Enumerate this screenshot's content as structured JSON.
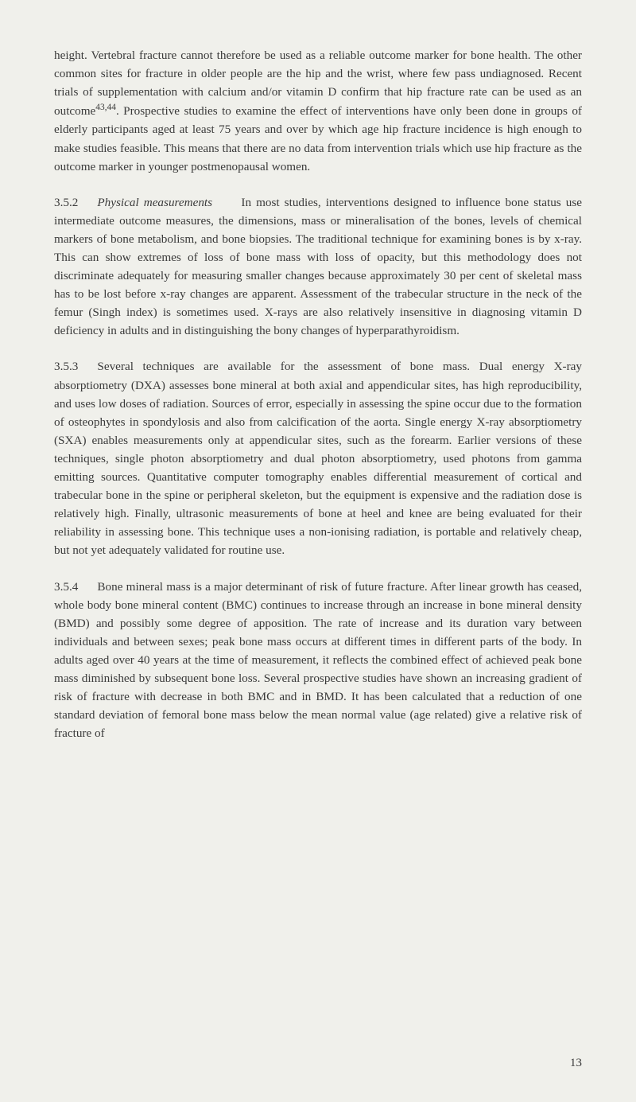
{
  "background_color": "#f0f0eb",
  "text_color": "#3a3a3a",
  "font_size": 15.2,
  "paragraphs": {
    "p1": {
      "text": "height. Vertebral fracture cannot therefore be used as a reliable outcome marker for bone health. The other common sites for fracture in older people are the hip and the wrist, where few pass undiagnosed. Recent trials of supplementation with calcium and/or vitamin D confirm that hip fracture rate can be used as an outcome",
      "sup": "43,44",
      "text_after": ". Prospective studies to examine the effect of interventions have only been done in groups of elderly participants aged at least 75 years and over by which age hip fracture incidence is high enough to make studies feasible. This means that there are no data from intervention trials which use hip fracture as the outcome marker in younger postmenopausal women."
    },
    "p2": {
      "section_number": "3.5.2",
      "section_title": "Physical measurements",
      "text": "In most studies, interventions designed to influence bone status use intermediate outcome measures, the dimensions, mass or mineralisation of the bones, levels of chemical markers of bone metabolism, and bone biopsies. The traditional technique for examining bones is by x-ray. This can show extremes of loss of bone mass with loss of opacity, but this methodology does not discriminate adequately for measuring smaller changes because approximately 30 per cent of skeletal mass has to be lost before x-ray changes are apparent. Assessment of the trabecular structure in the neck of the femur (Singh index) is sometimes used. X-rays are also relatively insensitive in diagnosing vitamin D deficiency in adults and in distinguishing the bony changes of hyperparathyroidism."
    },
    "p3": {
      "section_number": "3.5.3",
      "text": "Several techniques are available for the assessment of bone mass. Dual energy X-ray absorptiometry (DXA) assesses bone mineral at both axial and appendicular sites, has high reproducibility, and uses low doses of radiation. Sources of error, especially in assessing the spine occur due to the formation of osteophytes in spondylosis and also from calcification of the aorta. Single energy X-ray absorptiometry (SXA) enables measurements only at appendicular sites, such as the forearm. Earlier versions of these techniques, single photon absorptiometry and dual photon absorptiometry, used photons from gamma emitting sources. Quantitative computer tomography enables differential measurement of cortical and trabecular bone in the spine or peripheral skeleton, but the equipment is expensive and the radiation dose is relatively high. Finally, ultrasonic measurements of bone at heel and knee are being evaluated for their reliability in assessing bone. This technique uses a non-ionising radiation, is portable and relatively cheap, but not yet adequately validated for routine use."
    },
    "p4": {
      "section_number": "3.5.4",
      "text": "Bone mineral mass is a major determinant of risk of future fracture. After linear growth has ceased, whole body bone mineral content (BMC) continues to increase through an increase in bone mineral density (BMD) and possibly some degree of apposition. The rate of increase and its duration vary between individuals and between sexes; peak bone mass occurs at different times in different parts of the body. In adults aged over 40 years at the time of measurement, it reflects the combined effect of achieved peak bone mass diminished by subsequent bone loss. Several prospective studies have shown an increasing gradient of risk of fracture with decrease in both BMC and in BMD. It has been calculated that a reduction of one standard deviation of femoral bone mass below the mean normal value (age related) give a relative risk of fracture of"
    }
  },
  "page_number": "13"
}
